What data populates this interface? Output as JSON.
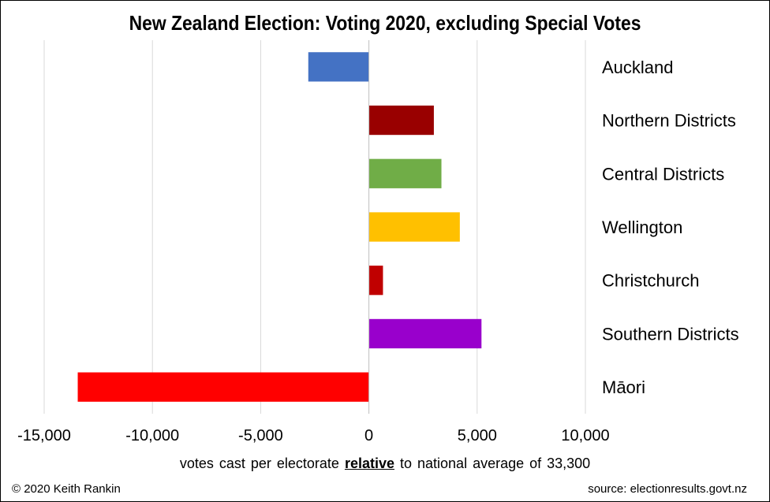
{
  "chart_data": {
    "type": "bar",
    "orientation": "horizontal",
    "title": "New Zealand Election: Voting 2020, excluding Special Votes",
    "xlabel": {
      "before": "votes cast per electorate",
      "emphasis": "relative",
      "after": "to national average of 33,300"
    },
    "categories": [
      "Auckland",
      "Northern Districts",
      "Central Districts",
      "Wellington",
      "Christchurch",
      "Southern Districts",
      "Māori"
    ],
    "values": [
      -2800,
      3000,
      3350,
      4200,
      650,
      5200,
      -13450
    ],
    "colors": [
      "#4472c4",
      "#990000",
      "#70ad47",
      "#ffc000",
      "#c00000",
      "#9900cc",
      "#ff0000"
    ],
    "xlim": [
      -15000,
      10000
    ],
    "xticks": [
      -15000,
      -10000,
      -5000,
      0,
      5000,
      10000
    ],
    "xtick_labels": [
      "-15,000",
      "-10,000",
      "-5,000",
      "0",
      "5,000",
      "10,000"
    ],
    "grid": "vertical",
    "category_labels_position": "right"
  },
  "footer": {
    "credit": "© 2020 Keith Rankin",
    "source": "source:  electionresults.govt.nz"
  }
}
